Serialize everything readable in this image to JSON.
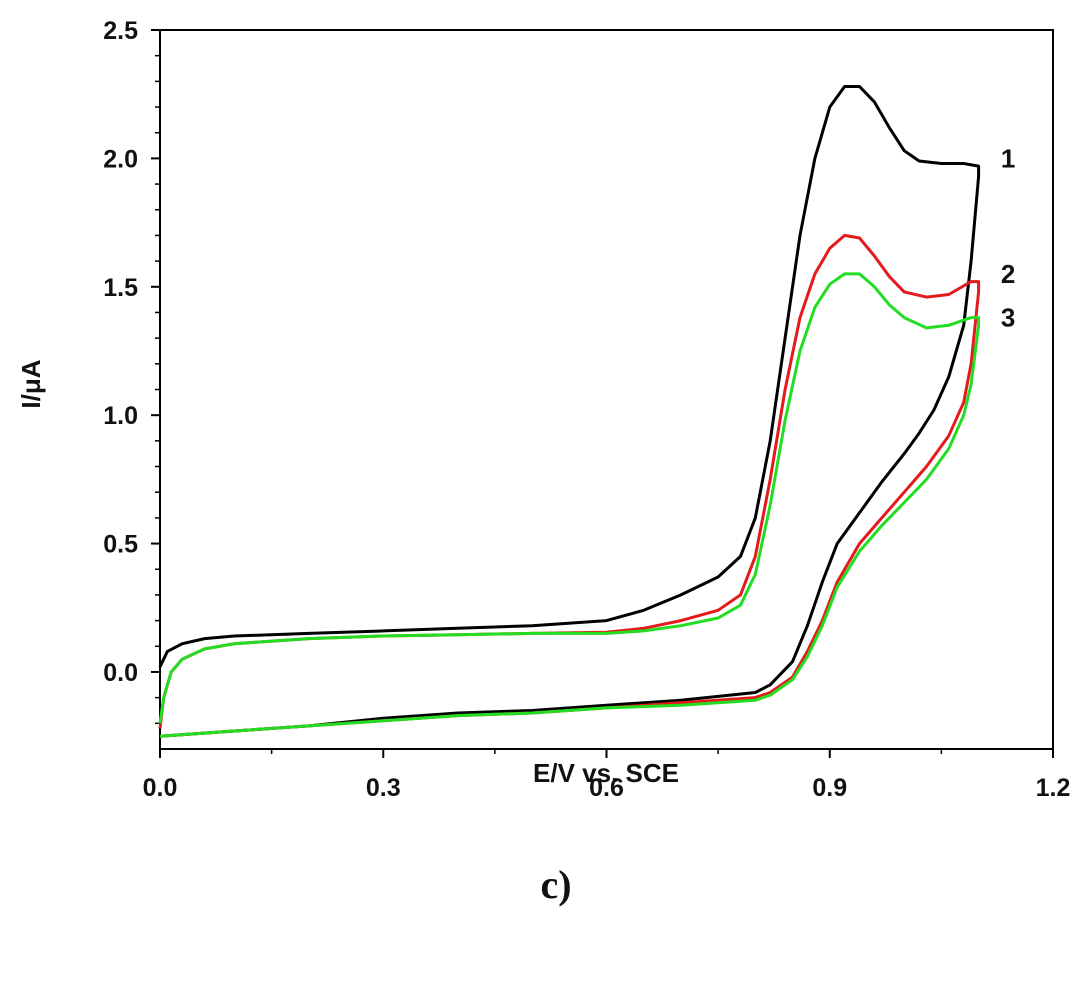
{
  "chart_data": {
    "type": "line",
    "xlabel": "E/V vs. SCE",
    "ylabel": "I/μA",
    "xlim": [
      0.0,
      1.2
    ],
    "ylim": [
      -0.3,
      2.5
    ],
    "xticks": [
      "0.0",
      "0.3",
      "0.6",
      "0.9",
      "1.2"
    ],
    "yticks": [
      "0.0",
      "0.5",
      "1.0",
      "1.5",
      "2.0",
      "2.5"
    ],
    "grid": false,
    "panel_label": "c)",
    "series": [
      {
        "name": "1",
        "color": "#000000",
        "forward": [
          [
            0.0,
            0.02
          ],
          [
            0.01,
            0.08
          ],
          [
            0.03,
            0.11
          ],
          [
            0.06,
            0.13
          ],
          [
            0.1,
            0.14
          ],
          [
            0.2,
            0.15
          ],
          [
            0.3,
            0.16
          ],
          [
            0.4,
            0.17
          ],
          [
            0.5,
            0.18
          ],
          [
            0.6,
            0.2
          ],
          [
            0.65,
            0.24
          ],
          [
            0.7,
            0.3
          ],
          [
            0.75,
            0.37
          ],
          [
            0.78,
            0.45
          ],
          [
            0.8,
            0.6
          ],
          [
            0.82,
            0.9
          ],
          [
            0.84,
            1.3
          ],
          [
            0.86,
            1.7
          ],
          [
            0.88,
            2.0
          ],
          [
            0.9,
            2.2
          ],
          [
            0.92,
            2.28
          ],
          [
            0.94,
            2.28
          ],
          [
            0.96,
            2.22
          ],
          [
            0.98,
            2.12
          ],
          [
            1.0,
            2.03
          ],
          [
            1.02,
            1.99
          ],
          [
            1.05,
            1.98
          ],
          [
            1.08,
            1.98
          ],
          [
            1.1,
            1.97
          ]
        ],
        "reverse": [
          [
            1.1,
            1.93
          ],
          [
            1.09,
            1.6
          ],
          [
            1.08,
            1.35
          ],
          [
            1.06,
            1.15
          ],
          [
            1.04,
            1.02
          ],
          [
            1.02,
            0.93
          ],
          [
            1.0,
            0.85
          ],
          [
            0.97,
            0.74
          ],
          [
            0.94,
            0.62
          ],
          [
            0.91,
            0.5
          ],
          [
            0.89,
            0.35
          ],
          [
            0.87,
            0.18
          ],
          [
            0.85,
            0.04
          ],
          [
            0.82,
            -0.05
          ],
          [
            0.8,
            -0.08
          ],
          [
            0.7,
            -0.11
          ],
          [
            0.6,
            -0.13
          ],
          [
            0.5,
            -0.15
          ],
          [
            0.4,
            -0.16
          ],
          [
            0.3,
            -0.18
          ],
          [
            0.2,
            -0.21
          ],
          [
            0.1,
            -0.23
          ],
          [
            0.0,
            -0.25
          ]
        ],
        "label_at": [
          1.13,
          2.0
        ]
      },
      {
        "name": "2",
        "color": "#e41a1c",
        "forward": [
          [
            0.0,
            -0.22
          ],
          [
            0.005,
            -0.1
          ],
          [
            0.015,
            0.0
          ],
          [
            0.03,
            0.05
          ],
          [
            0.06,
            0.09
          ],
          [
            0.1,
            0.11
          ],
          [
            0.2,
            0.13
          ],
          [
            0.3,
            0.14
          ],
          [
            0.4,
            0.145
          ],
          [
            0.5,
            0.15
          ],
          [
            0.6,
            0.155
          ],
          [
            0.65,
            0.17
          ],
          [
            0.7,
            0.2
          ],
          [
            0.75,
            0.24
          ],
          [
            0.78,
            0.3
          ],
          [
            0.8,
            0.45
          ],
          [
            0.82,
            0.75
          ],
          [
            0.84,
            1.1
          ],
          [
            0.86,
            1.38
          ],
          [
            0.88,
            1.55
          ],
          [
            0.9,
            1.65
          ],
          [
            0.92,
            1.7
          ],
          [
            0.94,
            1.69
          ],
          [
            0.96,
            1.62
          ],
          [
            0.98,
            1.54
          ],
          [
            1.0,
            1.48
          ],
          [
            1.03,
            1.46
          ],
          [
            1.06,
            1.47
          ],
          [
            1.09,
            1.52
          ],
          [
            1.1,
            1.52
          ]
        ],
        "reverse": [
          [
            1.1,
            1.48
          ],
          [
            1.09,
            1.2
          ],
          [
            1.08,
            1.05
          ],
          [
            1.06,
            0.92
          ],
          [
            1.03,
            0.8
          ],
          [
            1.0,
            0.7
          ],
          [
            0.97,
            0.6
          ],
          [
            0.94,
            0.5
          ],
          [
            0.91,
            0.35
          ],
          [
            0.89,
            0.2
          ],
          [
            0.87,
            0.08
          ],
          [
            0.85,
            -0.02
          ],
          [
            0.82,
            -0.08
          ],
          [
            0.8,
            -0.1
          ],
          [
            0.7,
            -0.12
          ],
          [
            0.6,
            -0.14
          ],
          [
            0.5,
            -0.16
          ],
          [
            0.4,
            -0.17
          ],
          [
            0.3,
            -0.19
          ],
          [
            0.2,
            -0.21
          ],
          [
            0.1,
            -0.23
          ],
          [
            0.0,
            -0.25
          ]
        ],
        "label_at": [
          1.13,
          1.55
        ]
      },
      {
        "name": "3",
        "color": "#22dd22",
        "forward": [
          [
            0.0,
            -0.2
          ],
          [
            0.005,
            -0.1
          ],
          [
            0.015,
            0.0
          ],
          [
            0.03,
            0.05
          ],
          [
            0.06,
            0.09
          ],
          [
            0.1,
            0.11
          ],
          [
            0.2,
            0.13
          ],
          [
            0.3,
            0.14
          ],
          [
            0.4,
            0.145
          ],
          [
            0.5,
            0.15
          ],
          [
            0.6,
            0.15
          ],
          [
            0.65,
            0.16
          ],
          [
            0.7,
            0.18
          ],
          [
            0.75,
            0.21
          ],
          [
            0.78,
            0.26
          ],
          [
            0.8,
            0.38
          ],
          [
            0.82,
            0.65
          ],
          [
            0.84,
            0.98
          ],
          [
            0.86,
            1.25
          ],
          [
            0.88,
            1.42
          ],
          [
            0.9,
            1.51
          ],
          [
            0.92,
            1.55
          ],
          [
            0.94,
            1.55
          ],
          [
            0.96,
            1.5
          ],
          [
            0.98,
            1.43
          ],
          [
            1.0,
            1.38
          ],
          [
            1.03,
            1.34
          ],
          [
            1.06,
            1.35
          ],
          [
            1.09,
            1.38
          ],
          [
            1.1,
            1.38
          ]
        ],
        "reverse": [
          [
            1.1,
            1.35
          ],
          [
            1.09,
            1.12
          ],
          [
            1.08,
            1.0
          ],
          [
            1.06,
            0.87
          ],
          [
            1.03,
            0.75
          ],
          [
            1.0,
            0.66
          ],
          [
            0.97,
            0.57
          ],
          [
            0.94,
            0.47
          ],
          [
            0.91,
            0.33
          ],
          [
            0.89,
            0.18
          ],
          [
            0.87,
            0.06
          ],
          [
            0.85,
            -0.03
          ],
          [
            0.82,
            -0.09
          ],
          [
            0.8,
            -0.11
          ],
          [
            0.7,
            -0.13
          ],
          [
            0.6,
            -0.14
          ],
          [
            0.5,
            -0.16
          ],
          [
            0.4,
            -0.17
          ],
          [
            0.3,
            -0.19
          ],
          [
            0.2,
            -0.21
          ],
          [
            0.1,
            -0.23
          ],
          [
            0.0,
            -0.25
          ]
        ],
        "label_at": [
          1.13,
          1.38
        ]
      }
    ]
  }
}
